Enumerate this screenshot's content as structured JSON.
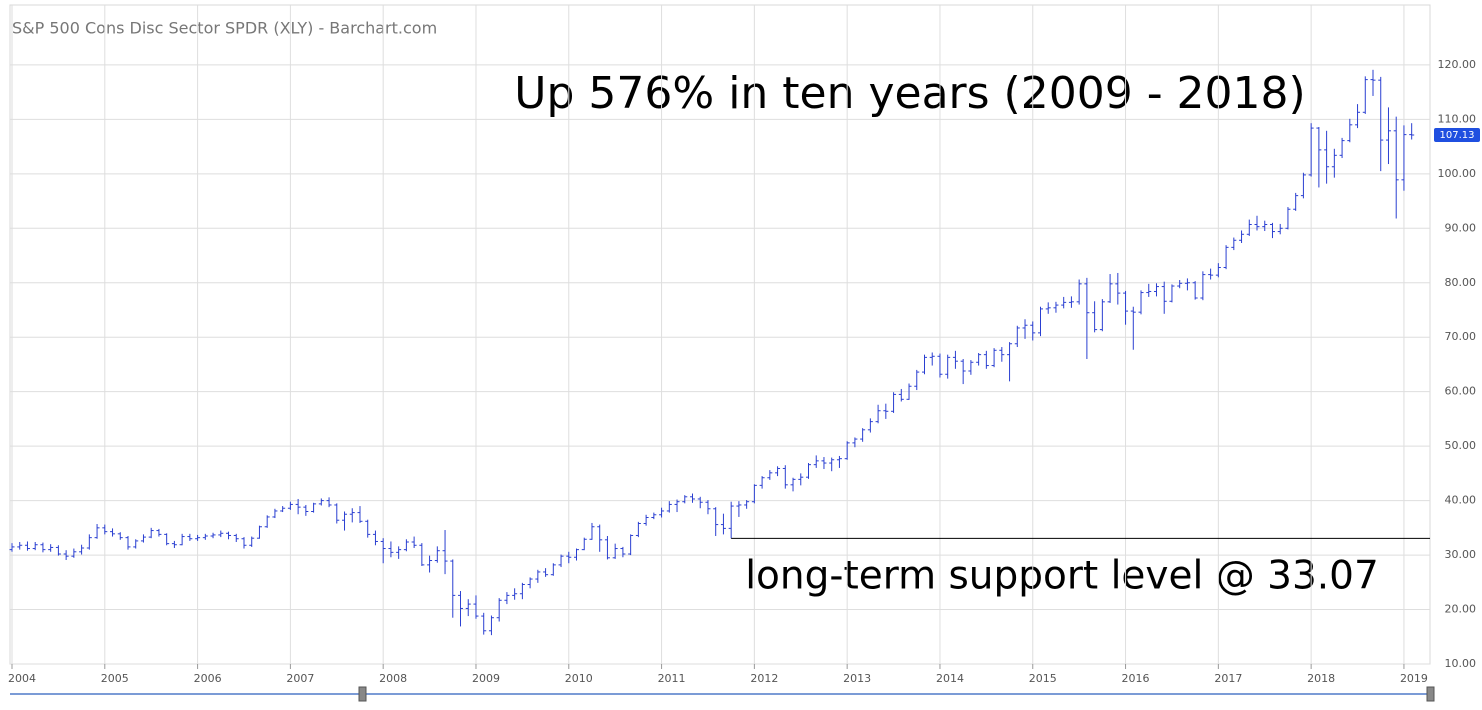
{
  "chart_data": {
    "type": "ohlc",
    "title": "S&P 500 Cons Disc Sector SPDR (XLY) - Barchart.com",
    "annotation": "Up 576% in ten years (2009 - 2018)",
    "support": {
      "value": 33.07,
      "label": "long-term support level @ 33.07"
    },
    "color": "#2a3fd1",
    "grid": true,
    "ylim": [
      10,
      131
    ],
    "yticks": [
      {
        "value": 10,
        "label": "10.00"
      },
      {
        "value": 20,
        "label": "20.00"
      },
      {
        "value": 30,
        "label": "30.00"
      },
      {
        "value": 40,
        "label": "40.00"
      },
      {
        "value": 50,
        "label": "50.00"
      },
      {
        "value": 60,
        "label": "60.00"
      },
      {
        "value": 70,
        "label": "70.00"
      },
      {
        "value": 80,
        "label": "80.00"
      },
      {
        "value": 90,
        "label": "90.00"
      },
      {
        "value": 100,
        "label": "100.00"
      },
      {
        "value": 110,
        "label": "110.00"
      },
      {
        "value": 120,
        "label": "120.00"
      }
    ],
    "categories": [
      "2004",
      null,
      null,
      null,
      null,
      null,
      null,
      null,
      null,
      null,
      null,
      null,
      "2005",
      null,
      null,
      null,
      null,
      null,
      null,
      null,
      null,
      null,
      null,
      null,
      "2006",
      null,
      null,
      null,
      null,
      null,
      null,
      null,
      null,
      null,
      null,
      null,
      "2007",
      null,
      null,
      null,
      null,
      null,
      null,
      null,
      null,
      null,
      null,
      null,
      "2008",
      null,
      null,
      null,
      null,
      null,
      null,
      null,
      null,
      null,
      null,
      null,
      "2009",
      null,
      null,
      null,
      null,
      null,
      null,
      null,
      null,
      null,
      null,
      null,
      "2010",
      null,
      null,
      null,
      null,
      null,
      null,
      null,
      null,
      null,
      null,
      null,
      "2011",
      null,
      null,
      null,
      null,
      null,
      null,
      null,
      null,
      null,
      null,
      null,
      "2012",
      null,
      null,
      null,
      null,
      null,
      null,
      null,
      null,
      null,
      null,
      null,
      "2013",
      null,
      null,
      null,
      null,
      null,
      null,
      null,
      null,
      null,
      null,
      null,
      "2014",
      null,
      null,
      null,
      null,
      null,
      null,
      null,
      null,
      null,
      null,
      null,
      "2015",
      null,
      null,
      null,
      null,
      null,
      null,
      null,
      null,
      null,
      null,
      null,
      "2016",
      null,
      null,
      null,
      null,
      null,
      null,
      null,
      null,
      null,
      null,
      null,
      "2017",
      null,
      null,
      null,
      null,
      null,
      null,
      null,
      null,
      null,
      null,
      null,
      "2018",
      null,
      null,
      null,
      null,
      null,
      null,
      null,
      null,
      null,
      null,
      null,
      "2019",
      null
    ],
    "open": [
      31.0,
      31.5,
      31.8,
      31.2,
      31.9,
      31.0,
      31.4,
      30.2,
      29.8,
      30.6,
      31.3,
      33.2,
      35.0,
      34.3,
      33.9,
      33.2,
      31.5,
      32.6,
      33.3,
      34.5,
      33.8,
      32.1,
      31.9,
      33.4,
      33.0,
      33.2,
      33.5,
      33.7,
      34.0,
      33.6,
      33.0,
      31.8,
      33.1,
      35.2,
      37.0,
      38.1,
      38.6,
      39.3,
      38.8,
      38.0,
      39.4,
      40.0,
      39.2,
      36.4,
      37.5,
      37.8,
      36.2,
      33.8,
      32.5,
      31.2,
      30.5,
      31.0,
      32.4,
      31.8,
      28.2,
      29.0,
      30.8,
      28.9,
      22.6,
      20.2,
      21.0,
      18.8,
      16.1,
      18.5,
      21.7,
      22.6,
      22.9,
      24.6,
      25.6,
      26.9,
      26.4,
      28.2,
      29.8,
      29.6,
      31.0,
      32.9,
      35.2,
      32.8,
      29.5,
      31.2,
      30.2,
      33.6,
      35.8,
      36.9,
      37.4,
      38.1,
      39.3,
      39.8,
      40.7,
      40.3,
      39.7,
      38.5,
      35.6,
      34.9,
      39.0,
      39.2,
      39.8,
      42.8,
      44.2,
      45.1,
      45.9,
      42.9,
      43.9,
      44.3,
      46.6,
      47.3,
      46.9,
      47.5,
      47.7,
      50.6,
      51.3,
      53.0,
      54.5,
      56.5,
      56.4,
      59.5,
      58.6,
      61.0,
      63.6,
      66.3,
      66.5,
      63.2,
      66.3,
      65.6,
      63.8,
      65.4,
      66.8,
      64.8,
      67.6,
      66.8,
      68.8,
      71.7,
      72.2,
      70.8,
      75.2,
      75.4,
      75.9,
      76.4,
      76.5,
      79.8,
      74.5,
      71.4,
      76.5,
      79.8,
      78.1,
      74.8,
      74.6,
      78.2,
      78.4,
      79.3,
      76.6,
      79.4,
      79.9,
      80.0,
      77.2,
      81.5,
      81.4,
      82.8,
      86.5,
      87.8,
      88.9,
      90.7,
      90.3,
      90.7,
      89.4,
      90.0,
      93.5,
      96.0,
      99.8,
      108.4,
      104.4,
      101.3,
      103.4,
      106.1,
      109.0,
      111.3,
      117.3,
      117.2,
      106.2,
      107.9,
      98.9,
      107.2
    ],
    "high": [
      32.2,
      32.4,
      32.5,
      32.4,
      32.3,
      32.0,
      31.8,
      30.9,
      31.2,
      31.9,
      33.8,
      35.7,
      35.6,
      34.9,
      34.2,
      33.5,
      32.9,
      33.8,
      35.0,
      34.8,
      34.0,
      32.6,
      33.9,
      33.9,
      33.7,
      33.9,
      34.1,
      34.5,
      34.3,
      33.9,
      33.3,
      33.4,
      35.4,
      37.3,
      38.5,
      39.0,
      39.8,
      40.3,
      39.2,
      39.6,
      40.4,
      40.6,
      39.5,
      38.0,
      38.6,
      39.0,
      36.5,
      34.5,
      33.1,
      32.5,
      31.6,
      32.9,
      33.4,
      32.2,
      29.9,
      31.6,
      34.6,
      29.2,
      23.4,
      21.9,
      22.6,
      19.4,
      18.9,
      22.1,
      23.2,
      23.9,
      24.9,
      25.9,
      27.3,
      27.6,
      28.5,
      30.1,
      30.6,
      31.2,
      33.2,
      35.9,
      35.6,
      33.5,
      32.1,
      31.5,
      33.8,
      36.1,
      37.4,
      37.8,
      38.7,
      39.9,
      40.2,
      41.0,
      41.3,
      40.7,
      40.1,
      38.8,
      37.6,
      39.8,
      39.9,
      40.1,
      43.0,
      44.5,
      45.6,
      46.3,
      46.5,
      44.2,
      45.0,
      46.9,
      48.3,
      48.0,
      47.9,
      48.2,
      50.9,
      51.6,
      53.3,
      55.1,
      57.6,
      57.8,
      59.9,
      60.5,
      61.5,
      64.0,
      66.8,
      67.2,
      67.0,
      66.8,
      67.5,
      66.0,
      65.8,
      67.1,
      67.5,
      68.0,
      68.2,
      69.1,
      72.1,
      73.3,
      72.9,
      75.6,
      76.4,
      76.5,
      77.4,
      77.5,
      80.6,
      80.9,
      76.6,
      77.0,
      81.6,
      81.8,
      78.5,
      75.6,
      78.6,
      79.8,
      79.9,
      80.2,
      79.7,
      80.5,
      80.8,
      80.3,
      82.1,
      82.6,
      83.6,
      86.9,
      88.3,
      89.6,
      91.6,
      92.3,
      91.4,
      91.0,
      90.8,
      93.9,
      96.5,
      100.2,
      109.3,
      108.6,
      107.9,
      104.6,
      106.6,
      110.1,
      112.8,
      117.9,
      119.1,
      117.8,
      112.2,
      110.5,
      108.9,
      109.3
    ],
    "low": [
      30.6,
      31.0,
      30.8,
      30.9,
      30.5,
      30.6,
      29.9,
      29.1,
      29.5,
      30.1,
      31.0,
      33.0,
      33.8,
      33.4,
      32.8,
      31.0,
      31.2,
      32.3,
      33.1,
      33.4,
      31.8,
      31.3,
      31.8,
      32.6,
      32.6,
      32.8,
      33.1,
      33.3,
      32.9,
      32.4,
      31.2,
      31.5,
      33.0,
      35.0,
      36.8,
      37.9,
      38.3,
      37.5,
      37.2,
      37.8,
      39.1,
      38.8,
      35.8,
      34.5,
      36.0,
      35.9,
      33.2,
      31.8,
      28.5,
      29.6,
      29.3,
      30.7,
      31.3,
      28.0,
      26.8,
      28.6,
      26.5,
      18.5,
      16.9,
      18.8,
      18.3,
      15.4,
      15.3,
      17.8,
      21.0,
      21.8,
      21.9,
      23.9,
      24.9,
      26.0,
      26.2,
      27.8,
      28.5,
      29.0,
      30.9,
      32.8,
      30.6,
      29.2,
      29.3,
      29.6,
      30.0,
      33.3,
      35.4,
      36.6,
      36.9,
      37.8,
      37.9,
      39.5,
      39.6,
      38.6,
      37.5,
      33.5,
      33.8,
      33.07,
      37.0,
      38.5,
      39.5,
      42.2,
      43.8,
      44.5,
      42.2,
      41.7,
      42.8,
      44.0,
      46.0,
      45.8,
      45.4,
      46.0,
      47.5,
      49.8,
      50.8,
      52.5,
      54.2,
      55.0,
      56.1,
      58.2,
      58.5,
      60.3,
      63.2,
      64.8,
      62.6,
      62.4,
      64.2,
      61.4,
      63.1,
      64.8,
      64.2,
      64.5,
      65.5,
      61.9,
      68.2,
      69.7,
      69.4,
      70.2,
      74.3,
      74.5,
      75.3,
      75.4,
      76.0,
      66.0,
      70.9,
      71.1,
      76.3,
      76.0,
      72.3,
      67.7,
      74.2,
      77.4,
      77.5,
      74.3,
      76.4,
      79.0,
      78.6,
      76.9,
      76.8,
      80.6,
      81.0,
      82.5,
      86.0,
      87.3,
      88.6,
      89.6,
      89.5,
      88.2,
      88.9,
      89.8,
      93.2,
      95.5,
      99.5,
      97.5,
      98.2,
      99.3,
      102.9,
      105.8,
      108.4,
      111.0,
      114.3,
      100.5,
      101.8,
      91.8,
      96.9,
      106.3
    ],
    "close": [
      31.5,
      31.8,
      31.2,
      31.9,
      31.0,
      31.4,
      30.2,
      29.8,
      30.6,
      31.3,
      33.2,
      35.0,
      34.3,
      33.9,
      33.2,
      31.5,
      32.6,
      33.3,
      34.5,
      33.8,
      32.1,
      31.9,
      33.4,
      33.0,
      33.2,
      33.5,
      33.7,
      34.0,
      33.6,
      33.0,
      31.8,
      33.1,
      35.2,
      37.0,
      38.1,
      38.6,
      39.3,
      38.8,
      38.0,
      39.4,
      40.0,
      39.2,
      36.4,
      37.5,
      37.8,
      36.2,
      33.8,
      32.5,
      31.2,
      30.5,
      31.0,
      32.4,
      31.8,
      28.2,
      29.0,
      30.8,
      28.9,
      22.6,
      20.2,
      21.0,
      18.8,
      16.1,
      18.5,
      21.7,
      22.6,
      22.9,
      24.6,
      25.6,
      26.9,
      26.4,
      28.2,
      29.8,
      29.6,
      31.0,
      32.9,
      35.2,
      32.8,
      29.5,
      31.2,
      30.2,
      33.6,
      35.8,
      36.9,
      37.4,
      38.1,
      39.3,
      39.8,
      40.7,
      40.3,
      39.7,
      38.5,
      35.6,
      34.9,
      39.0,
      39.2,
      39.8,
      42.8,
      44.2,
      45.1,
      45.9,
      42.9,
      43.9,
      44.3,
      46.6,
      47.3,
      46.9,
      47.5,
      47.7,
      50.6,
      51.3,
      53.0,
      54.5,
      56.5,
      56.4,
      59.5,
      58.6,
      61.0,
      63.6,
      66.3,
      66.5,
      63.2,
      66.3,
      65.6,
      63.8,
      65.4,
      66.8,
      64.8,
      67.6,
      66.8,
      68.8,
      71.7,
      72.2,
      70.8,
      75.2,
      75.4,
      75.9,
      76.4,
      76.5,
      79.8,
      74.5,
      71.4,
      76.5,
      79.8,
      78.1,
      74.8,
      74.6,
      78.2,
      78.4,
      79.3,
      76.6,
      79.4,
      79.9,
      80.0,
      77.2,
      81.5,
      81.4,
      82.8,
      86.5,
      87.8,
      88.9,
      90.7,
      90.3,
      90.7,
      89.4,
      90.0,
      93.5,
      96.0,
      99.8,
      108.4,
      104.4,
      101.3,
      103.4,
      106.1,
      109.0,
      111.3,
      117.3,
      117.2,
      106.2,
      107.9,
      98.9,
      107.2,
      107.13
    ]
  }
}
